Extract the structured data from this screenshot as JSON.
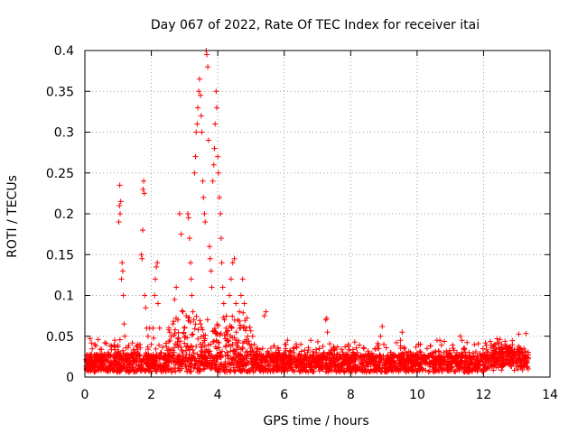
{
  "chart_data": {
    "type": "scatter",
    "title": "Day 067 of 2022, Rate Of TEC Index for receiver itai",
    "xlabel": "GPS time / hours",
    "ylabel": "ROTI / TECUs",
    "xlim": [
      0,
      14
    ],
    "ylim": [
      0,
      0.4
    ],
    "x_ticks": [
      0,
      2,
      4,
      6,
      8,
      10,
      12,
      14
    ],
    "x_tick_labels": [
      "0",
      "2",
      "4",
      "6",
      "8",
      "10",
      "12",
      "14"
    ],
    "y_ticks": [
      0,
      0.05,
      0.1,
      0.15,
      0.2,
      0.25,
      0.3,
      0.35,
      0.4
    ],
    "y_tick_labels": [
      "0",
      "0.05",
      "0.1",
      "0.15",
      "0.2",
      "0.25",
      "0.3",
      "0.35",
      "0.4"
    ],
    "grid": true,
    "marker": "+",
    "series": [
      {
        "name": "ROTI",
        "color": "#ff0000",
        "points": [
          [
            0.05,
            0.012
          ],
          [
            0.1,
            0.02
          ],
          [
            0.15,
            0.016
          ],
          [
            0.2,
            0.028
          ],
          [
            0.25,
            0.01
          ],
          [
            0.3,
            0.04
          ],
          [
            0.35,
            0.022
          ],
          [
            0.4,
            0.046
          ],
          [
            0.45,
            0.018
          ],
          [
            0.5,
            0.034
          ],
          [
            0.55,
            0.015
          ],
          [
            0.6,
            0.042
          ],
          [
            0.65,
            0.02
          ],
          [
            0.7,
            0.03
          ],
          [
            0.75,
            0.012
          ],
          [
            0.8,
            0.038
          ],
          [
            0.85,
            0.025
          ],
          [
            0.9,
            0.045
          ],
          [
            0.95,
            0.018
          ],
          [
            1.0,
            0.03
          ],
          [
            1.02,
            0.19
          ],
          [
            1.04,
            0.21
          ],
          [
            1.05,
            0.235
          ],
          [
            1.06,
            0.2
          ],
          [
            1.08,
            0.215
          ],
          [
            1.1,
            0.12
          ],
          [
            1.12,
            0.14
          ],
          [
            1.14,
            0.13
          ],
          [
            1.16,
            0.1
          ],
          [
            1.18,
            0.065
          ],
          [
            1.2,
            0.05
          ],
          [
            1.25,
            0.02
          ],
          [
            1.3,
            0.036
          ],
          [
            1.35,
            0.015
          ],
          [
            1.4,
            0.028
          ],
          [
            1.45,
            0.012
          ],
          [
            1.5,
            0.03
          ],
          [
            1.55,
            0.018
          ],
          [
            1.6,
            0.04
          ],
          [
            1.65,
            0.022
          ],
          [
            1.7,
            0.15
          ],
          [
            1.72,
            0.145
          ],
          [
            1.74,
            0.18
          ],
          [
            1.75,
            0.23
          ],
          [
            1.77,
            0.24
          ],
          [
            1.79,
            0.225
          ],
          [
            1.8,
            0.1
          ],
          [
            1.83,
            0.085
          ],
          [
            1.86,
            0.06
          ],
          [
            1.9,
            0.05
          ],
          [
            1.95,
            0.06
          ],
          [
            2.0,
            0.04
          ],
          [
            2.05,
            0.06
          ],
          [
            2.1,
            0.1
          ],
          [
            2.12,
            0.12
          ],
          [
            2.15,
            0.135
          ],
          [
            2.18,
            0.14
          ],
          [
            2.2,
            0.09
          ],
          [
            2.25,
            0.06
          ],
          [
            2.3,
            0.03
          ],
          [
            2.35,
            0.015
          ],
          [
            2.4,
            0.025
          ],
          [
            2.45,
            0.012
          ],
          [
            2.5,
            0.02
          ],
          [
            2.55,
            0.03
          ],
          [
            2.6,
            0.05
          ],
          [
            2.65,
            0.065
          ],
          [
            2.7,
            0.095
          ],
          [
            2.75,
            0.11
          ],
          [
            2.8,
            0.07
          ],
          [
            2.85,
            0.2
          ],
          [
            2.9,
            0.175
          ],
          [
            2.95,
            0.08
          ],
          [
            3.0,
            0.06
          ],
          [
            3.05,
            0.075
          ],
          [
            3.1,
            0.2
          ],
          [
            3.12,
            0.195
          ],
          [
            3.15,
            0.17
          ],
          [
            3.18,
            0.14
          ],
          [
            3.2,
            0.12
          ],
          [
            3.22,
            0.1
          ],
          [
            3.25,
            0.08
          ],
          [
            3.28,
            0.07
          ],
          [
            3.3,
            0.25
          ],
          [
            3.33,
            0.27
          ],
          [
            3.35,
            0.3
          ],
          [
            3.38,
            0.31
          ],
          [
            3.4,
            0.33
          ],
          [
            3.43,
            0.35
          ],
          [
            3.45,
            0.365
          ],
          [
            3.48,
            0.345
          ],
          [
            3.5,
            0.32
          ],
          [
            3.52,
            0.3
          ],
          [
            3.55,
            0.24
          ],
          [
            3.57,
            0.22
          ],
          [
            3.6,
            0.2
          ],
          [
            3.62,
            0.19
          ],
          [
            3.65,
            0.4
          ],
          [
            3.67,
            0.395
          ],
          [
            3.7,
            0.38
          ],
          [
            3.72,
            0.29
          ],
          [
            3.75,
            0.16
          ],
          [
            3.77,
            0.145
          ],
          [
            3.8,
            0.13
          ],
          [
            3.82,
            0.11
          ],
          [
            3.85,
            0.24
          ],
          [
            3.88,
            0.26
          ],
          [
            3.9,
            0.28
          ],
          [
            3.92,
            0.31
          ],
          [
            3.95,
            0.35
          ],
          [
            3.97,
            0.33
          ],
          [
            4.0,
            0.27
          ],
          [
            4.02,
            0.25
          ],
          [
            4.05,
            0.22
          ],
          [
            4.08,
            0.2
          ],
          [
            4.1,
            0.17
          ],
          [
            4.12,
            0.14
          ],
          [
            4.15,
            0.11
          ],
          [
            4.18,
            0.09
          ],
          [
            4.2,
            0.07
          ],
          [
            4.25,
            0.055
          ],
          [
            4.3,
            0.045
          ],
          [
            4.35,
            0.1
          ],
          [
            4.4,
            0.12
          ],
          [
            4.45,
            0.14
          ],
          [
            4.5,
            0.145
          ],
          [
            4.55,
            0.09
          ],
          [
            4.6,
            0.07
          ],
          [
            4.65,
            0.08
          ],
          [
            4.7,
            0.1
          ],
          [
            4.75,
            0.12
          ],
          [
            4.8,
            0.09
          ],
          [
            4.85,
            0.06
          ],
          [
            4.9,
            0.05
          ],
          [
            4.95,
            0.04
          ],
          [
            5.0,
            0.03
          ],
          [
            5.05,
            0.05
          ],
          [
            5.1,
            0.04
          ],
          [
            5.15,
            0.025
          ],
          [
            5.2,
            0.035
          ],
          [
            5.25,
            0.015
          ],
          [
            5.3,
            0.02
          ],
          [
            5.35,
            0.035
          ],
          [
            5.4,
            0.075
          ],
          [
            5.45,
            0.08
          ],
          [
            5.5,
            0.03
          ],
          [
            5.6,
            0.02
          ],
          [
            5.7,
            0.038
          ],
          [
            5.8,
            0.015
          ],
          [
            5.9,
            0.025
          ],
          [
            6.0,
            0.03
          ],
          [
            6.05,
            0.04
          ],
          [
            6.1,
            0.045
          ],
          [
            6.2,
            0.018
          ],
          [
            6.3,
            0.035
          ],
          [
            6.4,
            0.022
          ],
          [
            6.5,
            0.04
          ],
          [
            6.6,
            0.015
          ],
          [
            6.7,
            0.03
          ],
          [
            6.8,
            0.045
          ],
          [
            6.9,
            0.02
          ],
          [
            7.0,
            0.025
          ],
          [
            7.1,
            0.015
          ],
          [
            7.2,
            0.03
          ],
          [
            7.25,
            0.07
          ],
          [
            7.28,
            0.072
          ],
          [
            7.3,
            0.055
          ],
          [
            7.35,
            0.03
          ],
          [
            7.4,
            0.02
          ],
          [
            7.5,
            0.015
          ],
          [
            7.6,
            0.028
          ],
          [
            7.7,
            0.012
          ],
          [
            7.8,
            0.022
          ],
          [
            7.9,
            0.015
          ],
          [
            8.0,
            0.025
          ],
          [
            8.1,
            0.01
          ],
          [
            8.2,
            0.03
          ],
          [
            8.3,
            0.018
          ],
          [
            8.4,
            0.035
          ],
          [
            8.5,
            0.015
          ],
          [
            8.6,
            0.025
          ],
          [
            8.7,
            0.02
          ],
          [
            8.8,
            0.035
          ],
          [
            8.9,
            0.05
          ],
          [
            8.95,
            0.062
          ],
          [
            9.0,
            0.04
          ],
          [
            9.1,
            0.02
          ],
          [
            9.2,
            0.03
          ],
          [
            9.3,
            0.015
          ],
          [
            9.4,
            0.025
          ],
          [
            9.5,
            0.045
          ],
          [
            9.55,
            0.055
          ],
          [
            9.6,
            0.035
          ],
          [
            9.7,
            0.02
          ],
          [
            9.8,
            0.03
          ],
          [
            9.9,
            0.015
          ],
          [
            10.0,
            0.025
          ],
          [
            10.1,
            0.04
          ],
          [
            10.2,
            0.02
          ],
          [
            10.3,
            0.035
          ],
          [
            10.4,
            0.015
          ],
          [
            10.5,
            0.03
          ],
          [
            10.6,
            0.045
          ],
          [
            10.7,
            0.02
          ],
          [
            10.8,
            0.03
          ],
          [
            10.9,
            0.015
          ],
          [
            11.0,
            0.025
          ],
          [
            11.1,
            0.02
          ],
          [
            11.2,
            0.03
          ],
          [
            11.3,
            0.05
          ],
          [
            11.35,
            0.045
          ],
          [
            11.4,
            0.035
          ],
          [
            11.5,
            0.02
          ],
          [
            11.6,
            0.015
          ],
          [
            11.7,
            0.025
          ],
          [
            11.8,
            0.01
          ],
          [
            11.9,
            0.02
          ],
          [
            12.0,
            0.015
          ],
          [
            12.1,
            0.025
          ],
          [
            12.2,
            0.02
          ],
          [
            12.3,
            0.03
          ],
          [
            12.4,
            0.025
          ],
          [
            12.5,
            0.035
          ],
          [
            12.6,
            0.02
          ],
          [
            12.7,
            0.038
          ],
          [
            12.8,
            0.025
          ],
          [
            12.9,
            0.03
          ],
          [
            13.0,
            0.02
          ],
          [
            13.1,
            0.025
          ],
          [
            13.2,
            0.015
          ],
          [
            13.3,
            0.02
          ]
        ]
      }
    ]
  }
}
